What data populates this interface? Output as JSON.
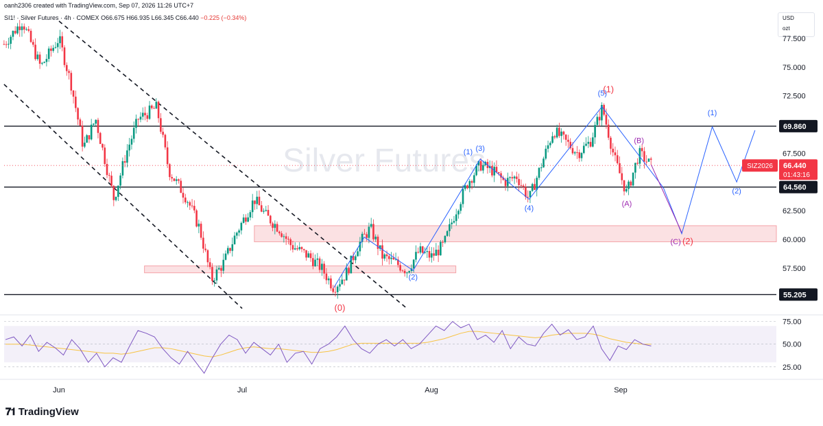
{
  "header": {
    "credit": "oanh2306 created with TradingView.com, Sep 07, 2026 11:26 UTC+7",
    "symbol": "SI1! · Silver Futures · 4h · COMEX",
    "o_label": "O",
    "o_value": "66.675",
    "h_label": "H",
    "h_value": "66.935",
    "l_label": "L",
    "l_value": "66.345",
    "c_label": "C",
    "c_value": "66.440",
    "change": "−0.225 (−0.34%)"
  },
  "watermark": "Silver Futures",
  "units": {
    "currency": "USD",
    "unit": "ozt"
  },
  "footer": {
    "brand": "TradingView"
  },
  "colors": {
    "up": "#089981",
    "down": "#f23645",
    "rsi": "#7e57c2",
    "rsi_ma": "#f7c343",
    "wave_blue": "#2962ff",
    "wave_red": "#f23645",
    "wave_purple": "#9c27b0",
    "zone": "#f8c9cc",
    "last_price": "#f23645"
  },
  "chart_data": {
    "type": "candlestick",
    "timeframe": "4h",
    "ylim": [
      53.5,
      80.0
    ],
    "y_ticks": [
      55.205,
      57.5,
      60.0,
      62.5,
      64.56,
      67.5,
      69.86,
      72.5,
      75.0,
      77.5
    ],
    "y_tick_labels": [
      "55.205",
      "57.500",
      "60.000",
      "62.500",
      "64.560",
      "67.500",
      "69.860",
      "72.500",
      "75.000",
      "77.500"
    ],
    "boxed_levels": [
      "55.205",
      "64.560",
      "69.860"
    ],
    "x_labels": [
      "Jun",
      "Jul",
      "Aug",
      "Sep"
    ],
    "horizontal_lines": [
      55.205,
      64.56,
      69.86
    ],
    "demand_zones": [
      {
        "low": 57.1,
        "high": 57.7,
        "from": "Jun 15",
        "to": "Aug 5"
      },
      {
        "low": 59.8,
        "high": 61.2,
        "from": "Jul 3",
        "to": "Sep 30"
      }
    ],
    "price_path": [
      [
        "May 23",
        77.0
      ],
      [
        "May 26",
        79.0
      ],
      [
        "May 29",
        75.0
      ],
      [
        "Jun 1",
        77.5
      ],
      [
        "Jun 3",
        73.5
      ],
      [
        "Jun 5",
        68.0
      ],
      [
        "Jun 7",
        70.5
      ],
      [
        "Jun 10",
        63.5
      ],
      [
        "Jun 12",
        67.5
      ],
      [
        "Jun 14",
        70.5
      ],
      [
        "Jun 17",
        71.5
      ],
      [
        "Jun 19",
        66.0
      ],
      [
        "Jun 22",
        63.5
      ],
      [
        "Jun 24",
        61.0
      ],
      [
        "Jun 26",
        56.5
      ],
      [
        "Jun 28",
        58.0
      ],
      [
        "Jun 30",
        60.5
      ],
      [
        "Jul 3",
        63.5
      ],
      [
        "Jul 5",
        62.0
      ],
      [
        "Jul 7",
        61.0
      ],
      [
        "Jul 9",
        59.5
      ],
      [
        "Jul 12",
        58.5
      ],
      [
        "Jul 14",
        57.5
      ],
      [
        "Jul 16",
        55.8
      ],
      [
        "Jul 18",
        57.0
      ],
      [
        "Jul 20",
        59.5
      ],
      [
        "Jul 22",
        61.0
      ],
      [
        "Jul 24",
        58.5
      ],
      [
        "Jul 26",
        58.0
      ],
      [
        "Jul 28",
        57.3
      ],
      [
        "Jul 30",
        59.0
      ],
      [
        "Aug 1",
        58.5
      ],
      [
        "Aug 3",
        59.5
      ],
      [
        "Aug 5",
        62.5
      ],
      [
        "Aug 7",
        65.0
      ],
      [
        "Aug 9",
        66.5
      ],
      [
        "Aug 11",
        66.0
      ],
      [
        "Aug 13",
        65.0
      ],
      [
        "Aug 15",
        65.5
      ],
      [
        "Aug 17",
        63.5
      ],
      [
        "Aug 19",
        66.5
      ],
      [
        "Aug 21",
        69.5
      ],
      [
        "Aug 23",
        68.5
      ],
      [
        "Aug 25",
        67.5
      ],
      [
        "Aug 27",
        68.5
      ],
      [
        "Aug 29",
        71.5
      ],
      [
        "Aug 31",
        67.0
      ],
      [
        "Sep 2",
        64.0
      ],
      [
        "Sep 4",
        67.5
      ],
      [
        "Sep 6",
        66.44
      ]
    ],
    "last_price": {
      "symbol": "SIZ2026",
      "price": "66.440",
      "countdown": "01:43:16"
    },
    "projection_impulse": [
      [
        "Aug 29",
        71.5
      ],
      [
        "Sep 8",
        64.5
      ],
      [
        "Sep 11",
        60.5
      ],
      [
        "Sep 16",
        69.8
      ],
      [
        "Sep 20",
        65.0
      ],
      [
        "Sep 23",
        69.5
      ]
    ],
    "projection_correction": [
      [
        "Sep 6",
        66.5
      ],
      [
        "Sep 11",
        60.6
      ]
    ],
    "channel": {
      "upper": [
        [
          "Jun 1",
          79.0
        ],
        [
          "Jul 28",
          54.0
        ]
      ],
      "lower": [
        [
          "May 23",
          73.5
        ],
        [
          "Jul 1",
          54.0
        ]
      ]
    },
    "wave_labels": [
      {
        "text": "(0)",
        "color": "red",
        "date": "Jul 17",
        "price": 53.8
      },
      {
        "text": "(1)",
        "color": "red",
        "date": "Aug 30",
        "price": 72.8
      },
      {
        "text": "(2)",
        "color": "red",
        "date": "Sep 12",
        "price": 59.6
      },
      {
        "text": "(1)",
        "color": "blue",
        "date": "Aug 7",
        "price": 67.4
      },
      {
        "text": "(2)",
        "color": "blue",
        "date": "Jul 29",
        "price": 56.5
      },
      {
        "text": "(3)",
        "color": "blue",
        "date": "Aug 9",
        "price": 67.7
      },
      {
        "text": "(4)",
        "color": "blue",
        "date": "Aug 17",
        "price": 62.5
      },
      {
        "text": "(5)",
        "color": "blue",
        "date": "Aug 29",
        "price": 72.5
      },
      {
        "text": "(1)",
        "color": "blue",
        "date": "Sep 16",
        "price": 70.8
      },
      {
        "text": "(2)",
        "color": "blue",
        "date": "Sep 20",
        "price": 64.0
      },
      {
        "text": "(A)",
        "color": "purple",
        "date": "Sep 2",
        "price": 62.9
      },
      {
        "text": "(B)",
        "color": "purple",
        "date": "Sep 4",
        "price": 68.4
      },
      {
        "text": "(C)",
        "color": "purple",
        "date": "Sep 10",
        "price": 59.6
      }
    ],
    "rsi": {
      "ylim": [
        15,
        80
      ],
      "ticks": [
        "75.00",
        "50.00",
        "25.00"
      ],
      "band": [
        30,
        70
      ],
      "values": [
        55,
        58,
        48,
        60,
        42,
        52,
        46,
        38,
        55,
        45,
        30,
        40,
        25,
        35,
        30,
        48,
        65,
        62,
        58,
        45,
        35,
        28,
        42,
        30,
        18,
        35,
        50,
        60,
        55,
        40,
        52,
        45,
        38,
        50,
        30,
        40,
        42,
        28,
        45,
        50,
        58,
        70,
        55,
        45,
        40,
        50,
        55,
        48,
        55,
        45,
        50,
        60,
        70,
        65,
        75,
        68,
        72,
        55,
        60,
        52,
        65,
        45,
        58,
        50,
        48,
        62,
        72,
        60,
        66,
        55,
        58,
        70,
        45,
        32,
        48,
        44,
        55,
        50,
        48
      ],
      "ma": [
        50,
        50,
        50,
        49,
        48,
        47,
        46,
        45,
        44,
        43,
        42,
        41,
        40,
        40,
        39,
        40,
        42,
        44,
        46,
        46,
        45,
        43,
        41,
        39,
        37,
        36,
        38,
        41,
        44,
        46,
        47,
        46,
        45,
        45,
        44,
        43,
        42,
        41,
        41,
        42,
        44,
        47,
        50,
        51,
        51,
        51,
        51,
        51,
        51,
        51,
        51,
        52,
        54,
        56,
        59,
        62,
        64,
        64,
        63,
        62,
        61,
        60,
        59,
        58,
        57,
        58,
        60,
        61,
        62,
        62,
        62,
        61,
        59,
        56,
        54,
        52,
        51,
        50,
        50
      ]
    }
  }
}
